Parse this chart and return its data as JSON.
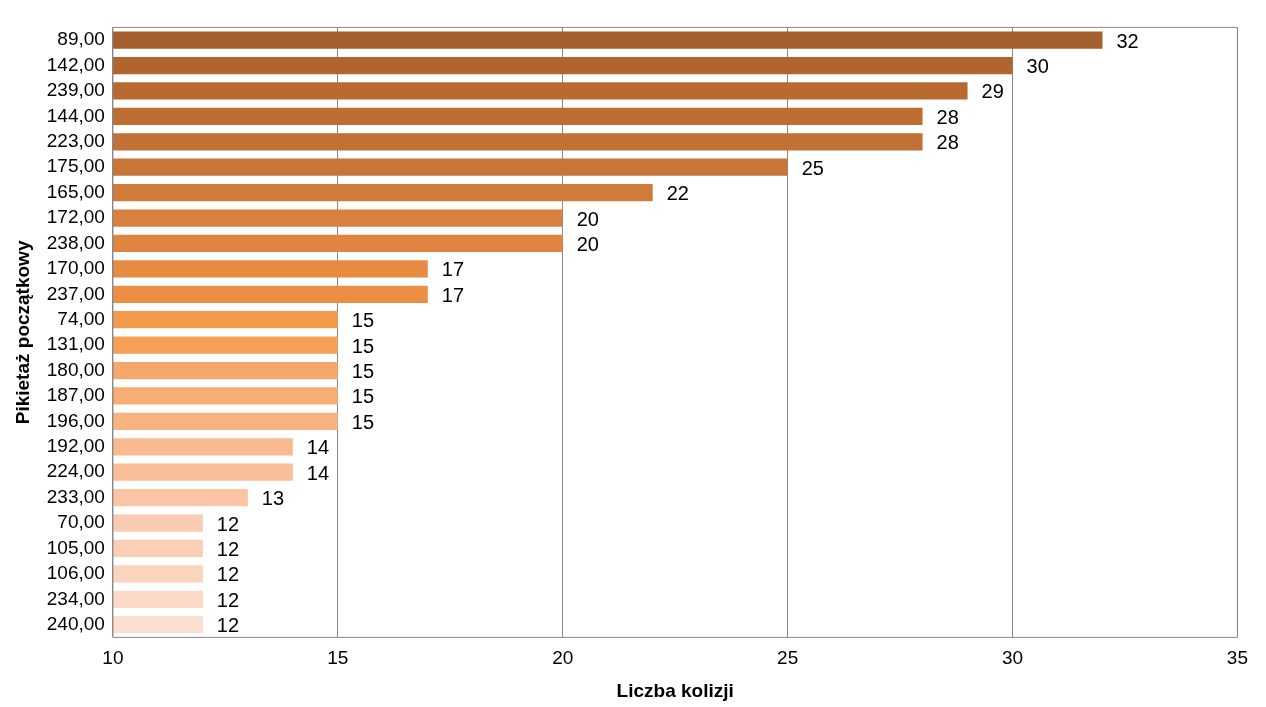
{
  "chart_data": {
    "type": "bar",
    "orientation": "horizontal",
    "xlabel": "Liczba kolizji",
    "ylabel": "Pikietaż początkowy",
    "categories": [
      "89,00",
      "142,00",
      "239,00",
      "144,00",
      "223,00",
      "175,00",
      "165,00",
      "172,00",
      "238,00",
      "170,00",
      "237,00",
      "74,00",
      "131,00",
      "180,00",
      "187,00",
      "196,00",
      "192,00",
      "224,00",
      "233,00",
      "70,00",
      "105,00",
      "106,00",
      "234,00",
      "240,00"
    ],
    "values": [
      32,
      30,
      29,
      28,
      28,
      25,
      22,
      20,
      20,
      17,
      17,
      15,
      15,
      15,
      15,
      15,
      14,
      14,
      13,
      12,
      12,
      12,
      12,
      12
    ],
    "colors": [
      "#a65f2c",
      "#b0642e",
      "#b86a31",
      "#bd6e33",
      "#c17135",
      "#c87538",
      "#d07a3b",
      "#d9803e",
      "#df8540",
      "#e78a43",
      "#ec8e45",
      "#f39a4b",
      "#f5a055",
      "#f5a86a",
      "#f6ae76",
      "#f7b381",
      "#f8ba90",
      "#f8bf98",
      "#f9c5a5",
      "#f9cbb0",
      "#facfb6",
      "#fad4bd",
      "#fbd9c6",
      "#fbe0d1"
    ],
    "xlim": [
      10,
      35
    ],
    "xticks": [
      10,
      15,
      20,
      25,
      30,
      35
    ],
    "grid": "x",
    "data_labels": true,
    "legend": false
  }
}
